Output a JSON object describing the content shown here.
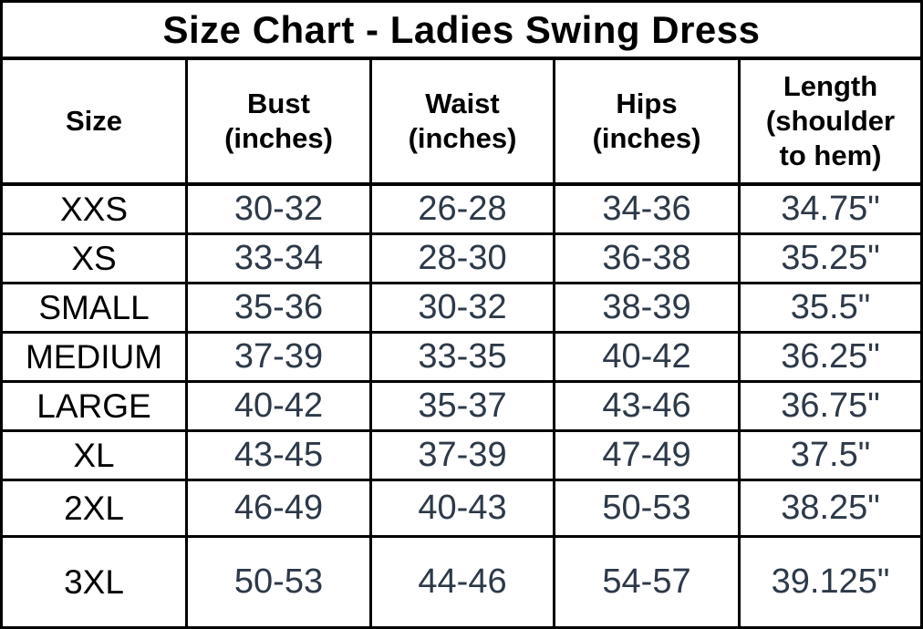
{
  "colors": {
    "background": "#ffffff",
    "border": "#000000",
    "heading_text": "#000000",
    "data_text": "#2d3948"
  },
  "header_display": {
    "size": "Size",
    "bust": "Bust\n(inches)",
    "waist": "Waist\n(inches)",
    "hips": "Hips\n(inches)",
    "length": "Length\n(shoulder\nto hem)"
  },
  "chart_data": {
    "type": "table",
    "title": "Size Chart - Ladies Swing Dress",
    "columns": [
      "Size",
      "Bust (inches)",
      "Waist (inches)",
      "Hips (inches)",
      "Length (shoulder to hem)"
    ],
    "rows": [
      {
        "size": "XXS",
        "bust": "30-32",
        "waist": "26-28",
        "hips": "34-36",
        "length": "34.75\""
      },
      {
        "size": "XS",
        "bust": "33-34",
        "waist": "28-30",
        "hips": "36-38",
        "length": "35.25\""
      },
      {
        "size": "SMALL",
        "bust": "35-36",
        "waist": "30-32",
        "hips": "38-39",
        "length": "35.5\""
      },
      {
        "size": "MEDIUM",
        "bust": "37-39",
        "waist": "33-35",
        "hips": "40-42",
        "length": "36.25\""
      },
      {
        "size": "LARGE",
        "bust": "40-42",
        "waist": "35-37",
        "hips": "43-46",
        "length": "36.75\""
      },
      {
        "size": "XL",
        "bust": "43-45",
        "waist": "37-39",
        "hips": "47-49",
        "length": "37.5\""
      },
      {
        "size": "2XL",
        "bust": "46-49",
        "waist": "40-43",
        "hips": "50-53",
        "length": "38.25\""
      },
      {
        "size": "3XL",
        "bust": "50-53",
        "waist": "44-46",
        "hips": "54-57",
        "length": "39.125\""
      }
    ]
  }
}
